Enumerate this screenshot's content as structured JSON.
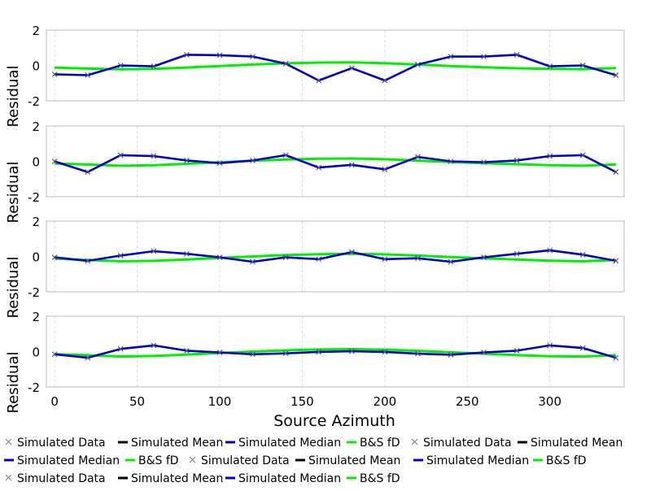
{
  "chart_data": {
    "type": "line",
    "xlabel": "Source Azimuth",
    "ylabel": "Residual",
    "xlim": [
      -5,
      345
    ],
    "ylim": [
      -2,
      2
    ],
    "xticks": [
      0,
      50,
      100,
      150,
      200,
      250,
      300
    ],
    "yticks": [
      -2,
      0,
      2
    ],
    "grid": "vertical dashed",
    "x": [
      0,
      20,
      40,
      60,
      80,
      100,
      120,
      140,
      160,
      180,
      200,
      220,
      240,
      260,
      280,
      300,
      320,
      340
    ],
    "colors": {
      "data": "#555577",
      "mean": "#000000",
      "median": "#0000cc",
      "fit": "#00ee00"
    },
    "panels": [
      {
        "series": [
          {
            "name": "Simulated Data",
            "values": [
              -0.5,
              -0.55,
              0.0,
              -0.05,
              0.6,
              0.58,
              0.5,
              0.1,
              -0.85,
              -0.15,
              -0.85,
              0.05,
              0.5,
              0.5,
              0.6,
              -0.05,
              0.0,
              -0.55
            ]
          },
          {
            "name": "Simulated Mean",
            "values": [
              -0.5,
              -0.55,
              0.0,
              -0.05,
              0.6,
              0.58,
              0.5,
              0.1,
              -0.85,
              -0.15,
              -0.85,
              0.05,
              0.5,
              0.5,
              0.6,
              -0.05,
              0.0,
              -0.55
            ]
          },
          {
            "name": "Simulated Median",
            "values": [
              -0.5,
              -0.55,
              0.0,
              -0.05,
              0.6,
              0.58,
              0.5,
              0.1,
              -0.85,
              -0.15,
              -0.85,
              0.05,
              0.5,
              0.5,
              0.6,
              -0.05,
              0.0,
              -0.55
            ]
          },
          {
            "name": "B&S fD",
            "values": [
              -0.12,
              -0.18,
              -0.22,
              -0.2,
              -0.12,
              -0.03,
              0.05,
              0.12,
              0.16,
              0.17,
              0.13,
              0.05,
              -0.03,
              -0.1,
              -0.16,
              -0.2,
              -0.21,
              -0.15
            ]
          }
        ]
      },
      {
        "series": [
          {
            "name": "Simulated Data",
            "values": [
              0.0,
              -0.6,
              0.35,
              0.3,
              0.05,
              -0.1,
              0.05,
              0.35,
              -0.35,
              -0.2,
              -0.45,
              0.25,
              0.0,
              -0.05,
              0.05,
              0.3,
              0.35,
              -0.6
            ]
          },
          {
            "name": "Simulated Mean",
            "values": [
              0.0,
              -0.6,
              0.35,
              0.3,
              0.05,
              -0.1,
              0.05,
              0.35,
              -0.35,
              -0.2,
              -0.45,
              0.25,
              0.0,
              -0.05,
              0.05,
              0.3,
              0.35,
              -0.6
            ]
          },
          {
            "name": "Simulated Median",
            "values": [
              0.0,
              -0.6,
              0.35,
              0.3,
              0.05,
              -0.1,
              0.05,
              0.35,
              -0.35,
              -0.2,
              -0.45,
              0.25,
              0.0,
              -0.05,
              0.05,
              0.3,
              0.35,
              -0.6
            ]
          },
          {
            "name": "B&S fD",
            "values": [
              -0.12,
              -0.18,
              -0.25,
              -0.22,
              -0.14,
              -0.05,
              0.03,
              0.1,
              0.15,
              0.16,
              0.12,
              0.04,
              -0.04,
              -0.1,
              -0.16,
              -0.22,
              -0.25,
              -0.18
            ]
          }
        ]
      },
      {
        "series": [
          {
            "name": "Simulated Data",
            "values": [
              -0.05,
              -0.25,
              0.05,
              0.3,
              0.15,
              -0.05,
              -0.3,
              -0.05,
              -0.15,
              0.25,
              -0.15,
              -0.1,
              -0.3,
              -0.05,
              0.15,
              0.35,
              0.1,
              -0.25
            ]
          },
          {
            "name": "Simulated Mean",
            "values": [
              -0.05,
              -0.25,
              0.05,
              0.3,
              0.15,
              -0.05,
              -0.3,
              -0.05,
              -0.15,
              0.25,
              -0.15,
              -0.1,
              -0.3,
              -0.05,
              0.15,
              0.35,
              0.1,
              -0.25
            ]
          },
          {
            "name": "Simulated Median",
            "values": [
              -0.05,
              -0.25,
              0.05,
              0.3,
              0.15,
              -0.05,
              -0.3,
              -0.05,
              -0.15,
              0.25,
              -0.15,
              -0.1,
              -0.3,
              -0.05,
              0.15,
              0.35,
              0.1,
              -0.25
            ]
          },
          {
            "name": "B&S fD",
            "values": [
              -0.12,
              -0.2,
              -0.27,
              -0.25,
              -0.17,
              -0.08,
              0.0,
              0.08,
              0.13,
              0.15,
              0.12,
              0.05,
              -0.03,
              -0.1,
              -0.17,
              -0.24,
              -0.27,
              -0.2
            ]
          }
        ]
      },
      {
        "series": [
          {
            "name": "Simulated Data",
            "values": [
              -0.15,
              -0.35,
              0.15,
              0.35,
              0.05,
              -0.05,
              -0.15,
              -0.1,
              -0.02,
              0.02,
              -0.02,
              -0.12,
              -0.18,
              -0.05,
              0.05,
              0.35,
              0.2,
              -0.35
            ]
          },
          {
            "name": "Simulated Mean",
            "values": [
              -0.15,
              -0.35,
              0.15,
              0.35,
              0.05,
              -0.05,
              -0.15,
              -0.1,
              -0.02,
              0.02,
              -0.02,
              -0.12,
              -0.18,
              -0.05,
              0.05,
              0.35,
              0.2,
              -0.35
            ]
          },
          {
            "name": "Simulated Median",
            "values": [
              -0.15,
              -0.35,
              0.15,
              0.35,
              0.05,
              -0.05,
              -0.15,
              -0.1,
              -0.02,
              0.02,
              -0.02,
              -0.12,
              -0.18,
              -0.05,
              0.05,
              0.35,
              0.2,
              -0.35
            ]
          },
          {
            "name": "B&S fD",
            "values": [
              -0.15,
              -0.2,
              -0.28,
              -0.25,
              -0.17,
              -0.08,
              0.0,
              0.07,
              0.12,
              0.14,
              0.11,
              0.04,
              -0.04,
              -0.12,
              -0.2,
              -0.26,
              -0.28,
              -0.2
            ]
          }
        ]
      }
    ],
    "legend": {
      "placement": "bottom",
      "rows": [
        [
          {
            "marker": "x",
            "color": "#555577",
            "label": "Simulated Data"
          },
          {
            "marker": "line",
            "color": "#000000",
            "label": "Simulated Mean"
          },
          {
            "marker": "line",
            "color": "#0000cc",
            "label": "Simulated Median"
          },
          {
            "marker": "line",
            "color": "#00ee00",
            "label": "B&S fD"
          },
          {
            "marker": "x",
            "color": "#555577",
            "label": "Simulated Data"
          },
          {
            "marker": "line",
            "color": "#000000",
            "label": "Simulated Mean"
          }
        ],
        [
          {
            "marker": "line",
            "color": "#0000cc",
            "label": "Simulated Median"
          },
          {
            "marker": "line",
            "color": "#00ee00",
            "label": "B&S fD"
          },
          {
            "marker": "x",
            "color": "#555577",
            "label": "Simulated Data"
          },
          {
            "marker": "line",
            "color": "#000000",
            "label": "Simulated Mean"
          },
          {
            "marker": "line",
            "color": "#0000cc",
            "label": "Simulated Median"
          },
          {
            "marker": "line",
            "color": "#00ee00",
            "label": "B&S fD"
          }
        ],
        [
          {
            "marker": "x",
            "color": "#555577",
            "label": "Simulated Data"
          },
          {
            "marker": "line",
            "color": "#000000",
            "label": "Simulated Mean"
          },
          {
            "marker": "line",
            "color": "#0000cc",
            "label": "Simulated Median"
          },
          {
            "marker": "line",
            "color": "#00ee00",
            "label": "B&S fD"
          }
        ]
      ]
    }
  }
}
